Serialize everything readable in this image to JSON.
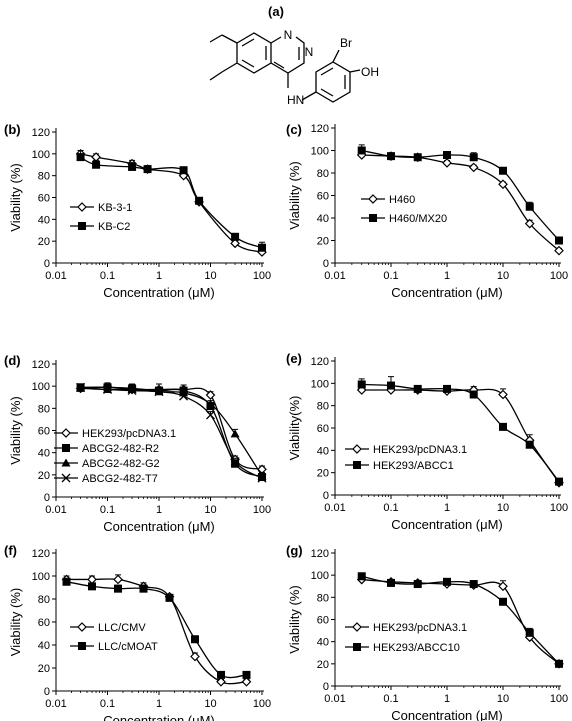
{
  "figure": {
    "panel_a_label": "(a)",
    "molecule": {
      "atom_N1": "N",
      "atom_N2": "N",
      "atom_HN": "HN",
      "atom_Br": "Br",
      "atom_OH": "OH"
    }
  },
  "chart_data": [
    {
      "panel": "(b)",
      "type": "line",
      "xscale": "log",
      "xlim": [
        0.01,
        100
      ],
      "ylim": [
        0,
        120
      ],
      "xticks": [
        "0.01",
        "0.1",
        "1",
        "10",
        "100"
      ],
      "yticks": [
        "0",
        "20",
        "40",
        "60",
        "80",
        "100",
        "120"
      ],
      "xlabel": "Concentration (μM)",
      "ylabel": "Viability (%)",
      "legend_position": "middle-left",
      "series": [
        {
          "name": "KB-3-1",
          "marker": "diamond-open",
          "x": [
            0.03,
            0.06,
            0.3,
            0.6,
            3,
            6,
            30,
            100
          ],
          "y": [
            100,
            97,
            91,
            86,
            80,
            56,
            18,
            10
          ],
          "err": [
            3,
            3,
            3,
            3,
            2,
            2,
            2,
            3
          ]
        },
        {
          "name": "KB-C2",
          "marker": "square-filled",
          "x": [
            0.03,
            0.06,
            0.3,
            0.6,
            3,
            6,
            30,
            100
          ],
          "y": [
            97,
            90,
            88,
            86,
            85,
            57,
            24,
            14
          ],
          "err": [
            6,
            4,
            4,
            3,
            2,
            2,
            3,
            5
          ]
        }
      ]
    },
    {
      "panel": "(c)",
      "type": "line",
      "xscale": "log",
      "xlim": [
        0.01,
        100
      ],
      "ylim": [
        0,
        120
      ],
      "xticks": [
        "0.01",
        "0.1",
        "1",
        "10",
        "100"
      ],
      "yticks": [
        "0",
        "20",
        "40",
        "60",
        "80",
        "100",
        "120"
      ],
      "xlabel": "Concentration (μM)",
      "ylabel": "Viability (%)",
      "legend_position": "middle-left",
      "series": [
        {
          "name": "H460",
          "marker": "diamond-open",
          "x": [
            0.03,
            0.1,
            0.3,
            1,
            3,
            10,
            30,
            100
          ],
          "y": [
            96,
            95,
            94,
            89,
            85,
            70,
            35,
            11
          ],
          "err": [
            2,
            2,
            2,
            2,
            2,
            2,
            3,
            2
          ]
        },
        {
          "name": "H460/MX20",
          "marker": "square-filled",
          "x": [
            0.03,
            0.1,
            0.3,
            1,
            3,
            10,
            30,
            100
          ],
          "y": [
            100,
            95,
            94,
            96,
            94,
            82,
            50,
            20
          ],
          "err": [
            5,
            2,
            2,
            2,
            4,
            2,
            4,
            3
          ]
        }
      ]
    },
    {
      "panel": "(d)",
      "type": "line",
      "xscale": "log",
      "xlim": [
        0.01,
        100
      ],
      "ylim": [
        0,
        120
      ],
      "xticks": [
        "0.01",
        "0.1",
        "1",
        "10",
        "100"
      ],
      "yticks": [
        "0",
        "20",
        "40",
        "60",
        "80",
        "100",
        "120"
      ],
      "xlabel": "Concentration (μM)",
      "ylabel": "Viability (%)",
      "legend_position": "bottom-left",
      "series": [
        {
          "name": "HEK293/pcDNA3.1",
          "marker": "diamond-open",
          "x": [
            0.03,
            0.1,
            0.3,
            1,
            3,
            10,
            30,
            100
          ],
          "y": [
            98,
            99,
            97,
            97,
            97,
            92,
            34,
            25
          ],
          "err": [
            3,
            4,
            5,
            5,
            4,
            3,
            3,
            3
          ]
        },
        {
          "name": "ABCG2-482-R2",
          "marker": "square-filled",
          "x": [
            0.03,
            0.1,
            0.3,
            1,
            3,
            10,
            30,
            100
          ],
          "y": [
            99,
            99,
            98,
            96,
            96,
            82,
            30,
            18
          ],
          "err": [
            3,
            3,
            3,
            3,
            3,
            3,
            3,
            3
          ]
        },
        {
          "name": "ABCG2-482-G2",
          "marker": "triangle-filled",
          "x": [
            0.03,
            0.1,
            0.3,
            1,
            3,
            10,
            30,
            100
          ],
          "y": [
            98,
            97,
            97,
            95,
            94,
            84,
            57,
            19
          ],
          "err": [
            3,
            3,
            3,
            3,
            3,
            3,
            4,
            3
          ]
        },
        {
          "name": "ABCG2-482-T7",
          "marker": "x",
          "x": [
            0.03,
            0.1,
            0.3,
            1,
            3,
            10,
            30,
            100
          ],
          "y": [
            99,
            97,
            96,
            95,
            91,
            74,
            32,
            17
          ],
          "err": [
            3,
            3,
            3,
            3,
            3,
            3,
            3,
            3
          ]
        }
      ]
    },
    {
      "panel": "(e)",
      "type": "line",
      "xscale": "log",
      "xlim": [
        0.01,
        100
      ],
      "ylim": [
        0,
        120
      ],
      "xticks": [
        "0.01",
        "0.1",
        "1",
        "10",
        "100"
      ],
      "yticks": [
        "0",
        "20",
        "40",
        "60",
        "80",
        "100",
        "120"
      ],
      "xlabel": "Concentration (μM)",
      "ylabel": "Viability(%)",
      "legend_position": "bottom-left",
      "series": [
        {
          "name": "HEK293/pcDNA3.1",
          "marker": "diamond-open",
          "x": [
            0.03,
            0.1,
            0.3,
            1,
            3,
            10,
            30,
            100
          ],
          "y": [
            94,
            94,
            94,
            93,
            94,
            90,
            49,
            11
          ],
          "err": [
            3,
            3,
            3,
            3,
            3,
            5,
            5,
            2
          ]
        },
        {
          "name": "HEK293/ABCC1",
          "marker": "square-filled",
          "x": [
            0.03,
            0.1,
            0.3,
            1,
            3,
            10,
            30,
            100
          ],
          "y": [
            99,
            98,
            95,
            95,
            90,
            61,
            45,
            12
          ],
          "err": [
            5,
            8,
            3,
            3,
            3,
            2,
            3,
            2
          ]
        }
      ]
    },
    {
      "panel": "(f)",
      "type": "line",
      "xscale": "log",
      "xlim": [
        0.01,
        100
      ],
      "ylim": [
        0,
        120
      ],
      "xticks": [
        "0.01",
        "0.1",
        "1",
        "10",
        "100"
      ],
      "yticks": [
        "0",
        "20",
        "40",
        "60",
        "80",
        "100",
        "120"
      ],
      "xlabel": "Concentration (μM)",
      "ylabel": "Viability (%)",
      "legend_position": "bottom-left",
      "series": [
        {
          "name": "LLC/CMV",
          "marker": "diamond-open",
          "x": [
            0.016,
            0.05,
            0.16,
            0.5,
            1.6,
            5,
            16,
            50
          ],
          "y": [
            97,
            97,
            97,
            91,
            82,
            30,
            8,
            8
          ],
          "err": [
            3,
            3,
            4,
            3,
            2,
            3,
            2,
            2
          ]
        },
        {
          "name": "LLC/cMOAT",
          "marker": "square-filled",
          "x": [
            0.016,
            0.05,
            0.16,
            0.5,
            1.6,
            5,
            16,
            50
          ],
          "y": [
            95,
            91,
            89,
            89,
            81,
            45,
            14,
            14
          ],
          "err": [
            2,
            2,
            3,
            3,
            2,
            2,
            2,
            2
          ]
        }
      ]
    },
    {
      "panel": "(g)",
      "type": "line",
      "xscale": "log",
      "xlim": [
        0.01,
        100
      ],
      "ylim": [
        0,
        120
      ],
      "xticks": [
        "0.01",
        "0.1",
        "1",
        "10",
        "100"
      ],
      "yticks": [
        "0",
        "20",
        "40",
        "60",
        "80",
        "100",
        "120"
      ],
      "xlabel": "Concentration (μM)",
      "ylabel": "Viability (%)",
      "legend_position": "bottom-left",
      "series": [
        {
          "name": "HEK293/pcDNA3.1",
          "marker": "diamond-open",
          "x": [
            0.03,
            0.1,
            0.3,
            1,
            3,
            10,
            30,
            100
          ],
          "y": [
            96,
            94,
            93,
            92,
            91,
            90,
            44,
            20
          ],
          "err": [
            2,
            2,
            2,
            2,
            2,
            5,
            4,
            2
          ]
        },
        {
          "name": "HEK293/ABCC10",
          "marker": "square-filled",
          "x": [
            0.03,
            0.1,
            0.3,
            1,
            3,
            10,
            30,
            100
          ],
          "y": [
            99,
            93,
            92,
            94,
            92,
            76,
            48,
            20
          ],
          "err": [
            2,
            2,
            2,
            2,
            2,
            2,
            4,
            2
          ]
        }
      ]
    }
  ]
}
